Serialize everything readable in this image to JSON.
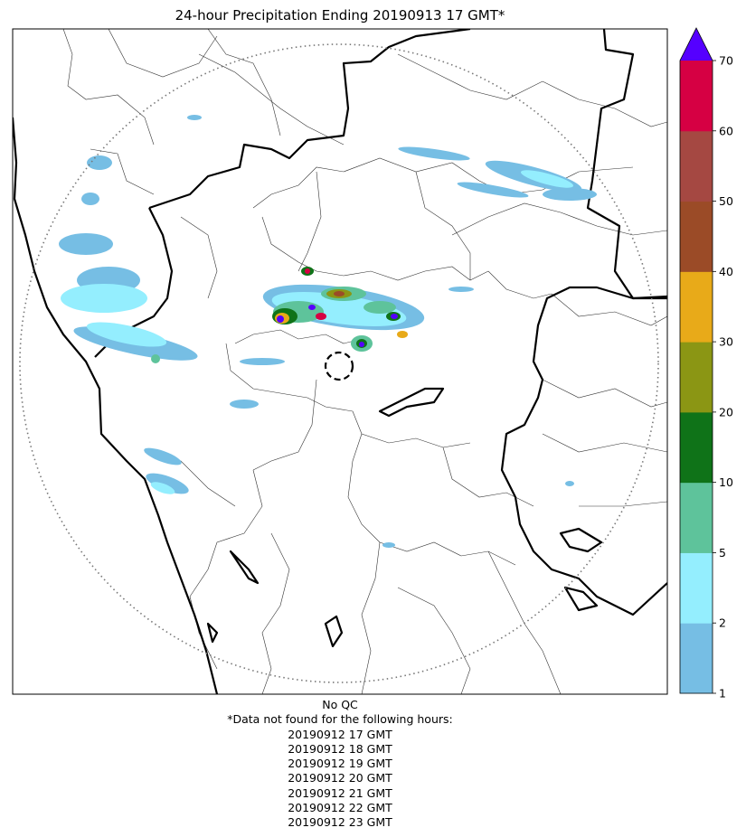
{
  "title": "24-hour Precipitation Ending 20190913 17 GMT*",
  "colorbar": {
    "tick_labels": [
      "1",
      "2",
      "5",
      "10",
      "20",
      "30",
      "40",
      "50",
      "60",
      "70"
    ],
    "bins": [
      {
        "from": 1,
        "to": 2,
        "color": "#76bee4"
      },
      {
        "from": 2,
        "to": 5,
        "color": "#94eefe"
      },
      {
        "from": 5,
        "to": 10,
        "color": "#5ec39b"
      },
      {
        "from": 10,
        "to": 20,
        "color": "#0f7318"
      },
      {
        "from": 20,
        "to": 30,
        "color": "#8b9614"
      },
      {
        "from": 30,
        "to": 40,
        "color": "#e8aa19"
      },
      {
        "from": 40,
        "to": 50,
        "color": "#9b4b27"
      },
      {
        "from": 50,
        "to": 60,
        "color": "#a54842"
      },
      {
        "from": 60,
        "to": 70,
        "color": "#d60043"
      }
    ],
    "over_color": "#5500ff"
  },
  "caption": {
    "qc": "No QC",
    "missing_header": "*Data not found for the following hours:",
    "missing_hours": [
      "20190912 17 GMT",
      "20190912 18 GMT",
      "20190912 19 GMT",
      "20190912 20 GMT",
      "20190912 21 GMT",
      "20190912 22 GMT",
      "20190912 23 GMT"
    ]
  }
}
